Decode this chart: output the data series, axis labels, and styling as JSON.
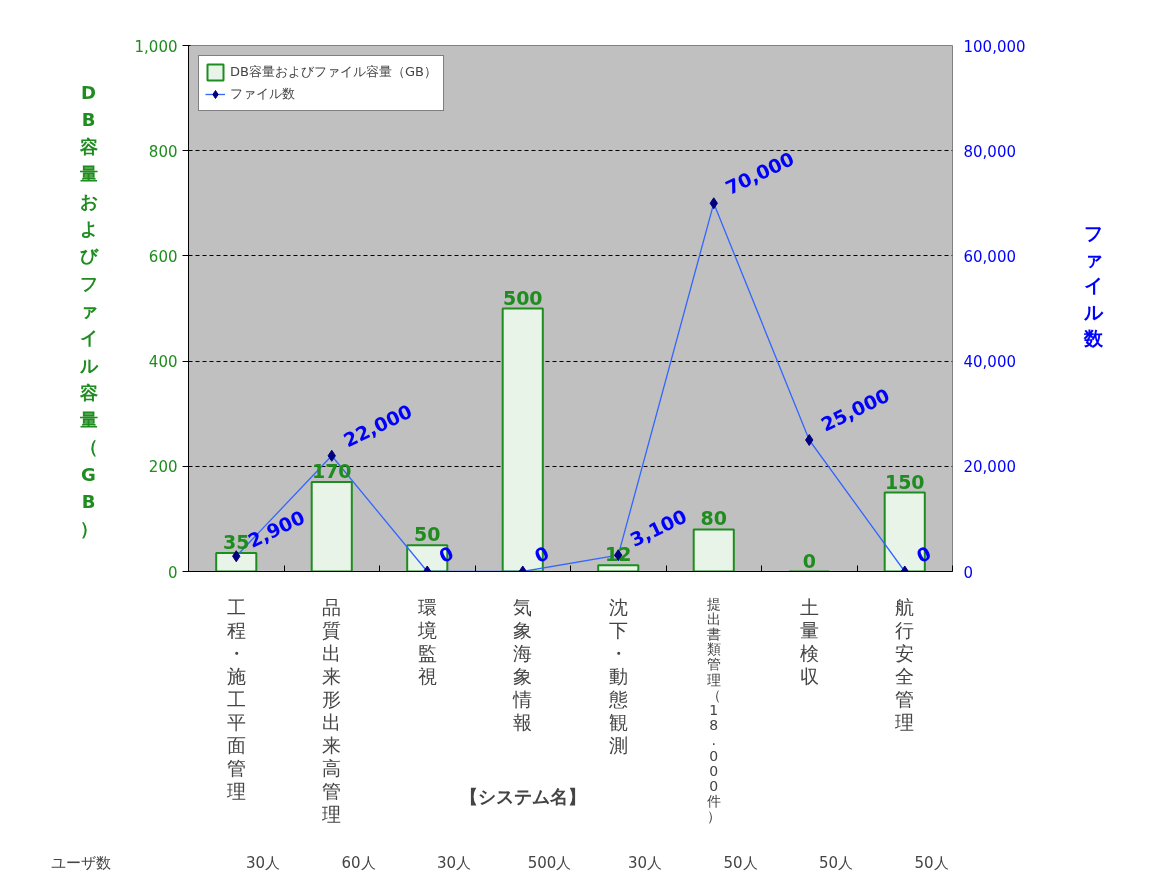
{
  "chart_data": {
    "type": "bar",
    "categories": [
      "工程・施工平面管理",
      "品質出来形出来高管理",
      "環境監視",
      "気象海象情報",
      "沈下・動態観測",
      "提出書類管理（18.000件）",
      "土量検収",
      "航行安全管理"
    ],
    "series": [
      {
        "name": "DB容量およびファイル容量（GB）",
        "color": "#1e8c1e",
        "values": [
          35,
          170,
          50,
          500,
          12,
          80,
          0,
          150
        ]
      },
      {
        "name": "ファイル数",
        "type": "line",
        "axis": "y2",
        "color": "#3366ff",
        "marker": "diamond",
        "values": [
          2900,
          22000,
          0,
          0,
          3100,
          70000,
          25000,
          0
        ],
        "value_labels": [
          "2,900",
          "22,000",
          "0",
          "0",
          "3,100",
          "70,000",
          "25,000",
          "0"
        ]
      }
    ],
    "xlabel": "【システム名】",
    "ylabel": "DB容量およびファイル容量（GB）",
    "y2label": "ファイル数",
    "ylim": [
      0,
      1000
    ],
    "yticks": [
      0,
      200,
      400,
      600,
      800,
      {
        "value": 1000,
        "label": "1,000"
      }
    ],
    "y2lim": [
      0,
      100000
    ],
    "y2ticks": [
      {
        "value": 0,
        "label": "0"
      },
      {
        "value": 20000,
        "label": "20,000"
      },
      {
        "value": 40000,
        "label": "40,000"
      },
      {
        "value": 60000,
        "label": "60,000"
      },
      {
        "value": 80000,
        "label": "80,000"
      },
      {
        "value": 100000,
        "label": "100,000"
      }
    ],
    "annotations": [
      "ユーザ数",
      "30人",
      "60人",
      "30人",
      "500人",
      "30人",
      "50人",
      "50人",
      "50人"
    ],
    "data_labels": true,
    "grid": "y",
    "legend": "top left"
  }
}
